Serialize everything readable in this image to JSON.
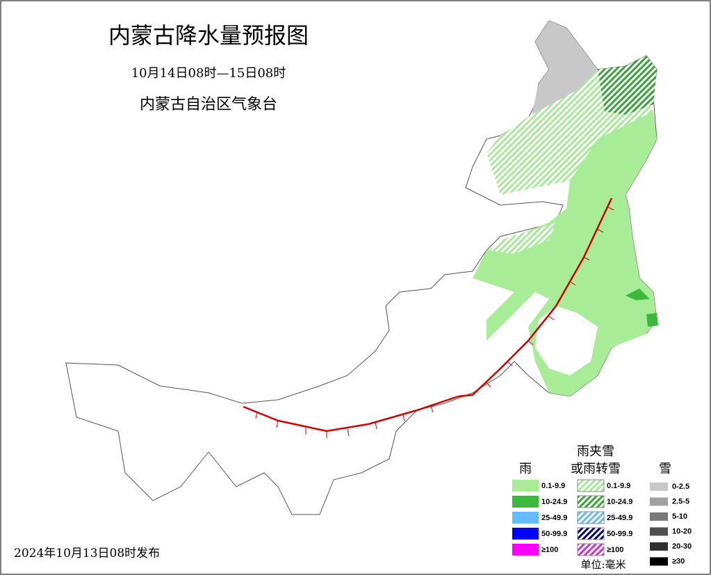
{
  "header": {
    "title": "内蒙古降水量预报图",
    "period": "10月14日08时—15日08时",
    "issuer": "内蒙古自治区气象台"
  },
  "legend": {
    "rain": {
      "title": "雨",
      "items": [
        "0.1-9.9",
        "10-24.9",
        "25-49.9",
        "50-99.9",
        "≥100"
      ]
    },
    "mixed": {
      "title_lines": [
        "雨夹雪",
        "或雨转雪"
      ],
      "items": [
        "0.1-9.9",
        "10-24.9",
        "25-49.9",
        "50-99.9",
        "≥100"
      ]
    },
    "snow": {
      "title": "雪",
      "items": [
        "0-2.5",
        "2.5-5",
        "5-10",
        "10-20",
        "20-30",
        "≥30"
      ]
    },
    "unit": "单位:毫米"
  },
  "footer": {
    "issued": "2024年10月13日08时发布"
  }
}
